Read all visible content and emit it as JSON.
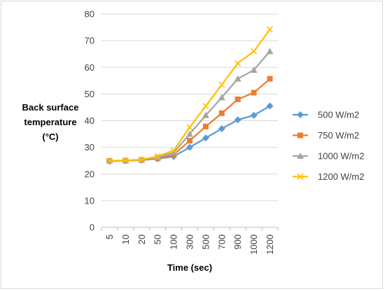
{
  "chart_data": {
    "type": "line",
    "title": "",
    "xlabel": "Time (sec)",
    "ylabel_lines": [
      "Back surface",
      "temperature",
      "(°C)"
    ],
    "categories": [
      "5",
      "10",
      "20",
      "50",
      "100",
      "300",
      "500",
      "700",
      "900",
      "1000",
      "1200"
    ],
    "ylim": [
      0,
      80
    ],
    "yticks": [
      0,
      10,
      20,
      30,
      40,
      50,
      60,
      70,
      80
    ],
    "grid": "horizontal",
    "legend_position": "right",
    "series": [
      {
        "name": "500 W/m2",
        "color": "#5B9BD5",
        "marker": "diamond",
        "values": [
          24.8,
          25.0,
          25.2,
          25.7,
          26.6,
          30.0,
          33.5,
          37.0,
          40.3,
          42.0,
          45.5
        ]
      },
      {
        "name": "750 W/m2",
        "color": "#ED7D31",
        "marker": "square",
        "values": [
          24.9,
          25.0,
          25.2,
          25.9,
          27.2,
          32.5,
          37.8,
          42.8,
          48.0,
          50.5,
          55.7
        ]
      },
      {
        "name": "1000 W/m2",
        "color": "#A5A5A5",
        "marker": "triangle",
        "values": [
          24.9,
          25.0,
          25.3,
          26.2,
          28.0,
          35.0,
          42.0,
          48.7,
          55.7,
          59.0,
          66.0
        ]
      },
      {
        "name": "1200 W/m2",
        "color": "#FFC000",
        "marker": "x",
        "values": [
          25.0,
          25.1,
          25.4,
          26.6,
          28.8,
          37.5,
          45.5,
          53.5,
          61.5,
          66.0,
          74.2
        ]
      }
    ]
  }
}
